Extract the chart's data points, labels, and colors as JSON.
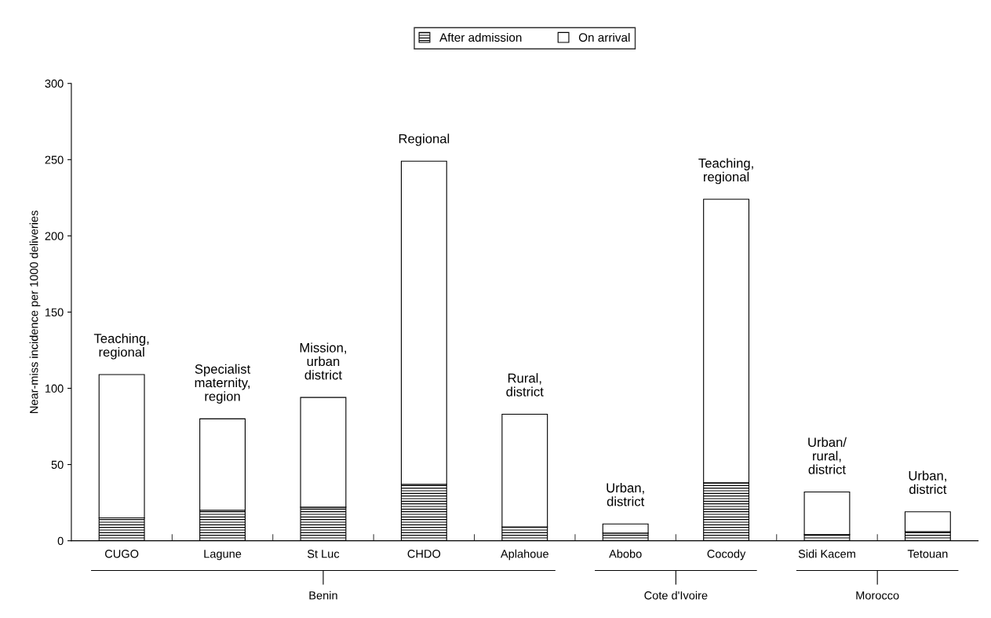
{
  "chart_data": {
    "type": "bar",
    "stacked": true,
    "legend": "top",
    "grid": false,
    "ylabel": "Near-miss incidence per 1000 deliveries",
    "ylim": [
      0,
      300
    ],
    "yticks": [
      0,
      50,
      100,
      150,
      200,
      250,
      300
    ],
    "categories": [
      "CUGO",
      "Lagune",
      "St Luc",
      "CHDO",
      "Aplahoue",
      "Abobo",
      "Cocody",
      "Sidi Kacem",
      "Tetouan"
    ],
    "series": [
      {
        "name": "After admission",
        "color": "#000000",
        "values": [
          15,
          20,
          22,
          37,
          9,
          5,
          38,
          4,
          6
        ]
      },
      {
        "name": "On arrival",
        "color": "#ffffff",
        "values": [
          94,
          60,
          72,
          212,
          74,
          6,
          186,
          28,
          13
        ]
      }
    ],
    "annotations": [
      {
        "text": "Teaching,\nregional",
        "x": "CUGO",
        "y": 109
      },
      {
        "text": "Specialist\nmaternity,\nregion",
        "x": "Lagune",
        "y": 80
      },
      {
        "text": "Mission,\nurban\ndistrict",
        "x": "St Luc",
        "y": 94
      },
      {
        "text": "Regional",
        "x": "CHDO",
        "y": 249
      },
      {
        "text": "Rural,\ndistrict",
        "x": "Aplahoue",
        "y": 83
      },
      {
        "text": "Urban,\ndistrict",
        "x": "Abobo",
        "y": 11
      },
      {
        "text": "Teaching,\nregional",
        "x": "Cocody",
        "y": 224
      },
      {
        "text": "Urban/\nrural,\ndistrict",
        "x": "Sidi Kacem",
        "y": 32
      },
      {
        "text": "Urban,\ndistrict",
        "x": "Tetouan",
        "y": 19
      },
      "Benin",
      "Cote d'Ivoire",
      "Morocco"
    ]
  }
}
